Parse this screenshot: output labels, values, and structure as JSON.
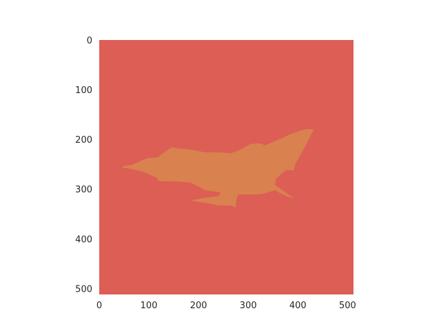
{
  "chart_data": {
    "type": "heatmap",
    "title": "",
    "xlabel": "",
    "ylabel": "",
    "xlim": [
      0,
      512
    ],
    "ylim": [
      512,
      0
    ],
    "x_ticks": [
      0,
      100,
      200,
      300,
      400,
      500
    ],
    "y_ticks": [
      0,
      100,
      200,
      300,
      400,
      500
    ],
    "x_tick_labels": [
      "0",
      "100",
      "200",
      "300",
      "400",
      "500"
    ],
    "y_tick_labels": [
      "0",
      "100",
      "200",
      "300",
      "400",
      "500"
    ],
    "grid": false,
    "legend": "none",
    "classes": [
      {
        "value": 0,
        "color": "#dc5e55"
      },
      {
        "value": 1,
        "color": "#d9814f"
      }
    ],
    "background_value": 0,
    "region_value": 1,
    "region_outline": [
      [
        48,
        254
      ],
      [
        66,
        251
      ],
      [
        82,
        244
      ],
      [
        96,
        238
      ],
      [
        118,
        236
      ],
      [
        134,
        224
      ],
      [
        145,
        216
      ],
      [
        160,
        218
      ],
      [
        182,
        220
      ],
      [
        213,
        226
      ],
      [
        242,
        226
      ],
      [
        265,
        228
      ],
      [
        282,
        222
      ],
      [
        305,
        209
      ],
      [
        325,
        208
      ],
      [
        334,
        212
      ],
      [
        362,
        200
      ],
      [
        386,
        189
      ],
      [
        403,
        183
      ],
      [
        418,
        179
      ],
      [
        432,
        180
      ],
      [
        415,
        214
      ],
      [
        395,
        249
      ],
      [
        392,
        262
      ],
      [
        376,
        262
      ],
      [
        369,
        268
      ],
      [
        356,
        279
      ],
      [
        354,
        292
      ],
      [
        369,
        302
      ],
      [
        383,
        312
      ],
      [
        393,
        318
      ],
      [
        378,
        315
      ],
      [
        360,
        306
      ],
      [
        354,
        302
      ],
      [
        332,
        309
      ],
      [
        313,
        311
      ],
      [
        280,
        311
      ],
      [
        276,
        322
      ],
      [
        275,
        337
      ],
      [
        265,
        333
      ],
      [
        240,
        333
      ],
      [
        226,
        330
      ],
      [
        200,
        326
      ],
      [
        183,
        323
      ],
      [
        210,
        318
      ],
      [
        240,
        314
      ],
      [
        245,
        307
      ],
      [
        213,
        302
      ],
      [
        196,
        293
      ],
      [
        183,
        287
      ],
      [
        159,
        285
      ],
      [
        121,
        284
      ],
      [
        115,
        277
      ],
      [
        93,
        267
      ],
      [
        72,
        261
      ],
      [
        55,
        258
      ],
      [
        48,
        258
      ]
    ]
  }
}
